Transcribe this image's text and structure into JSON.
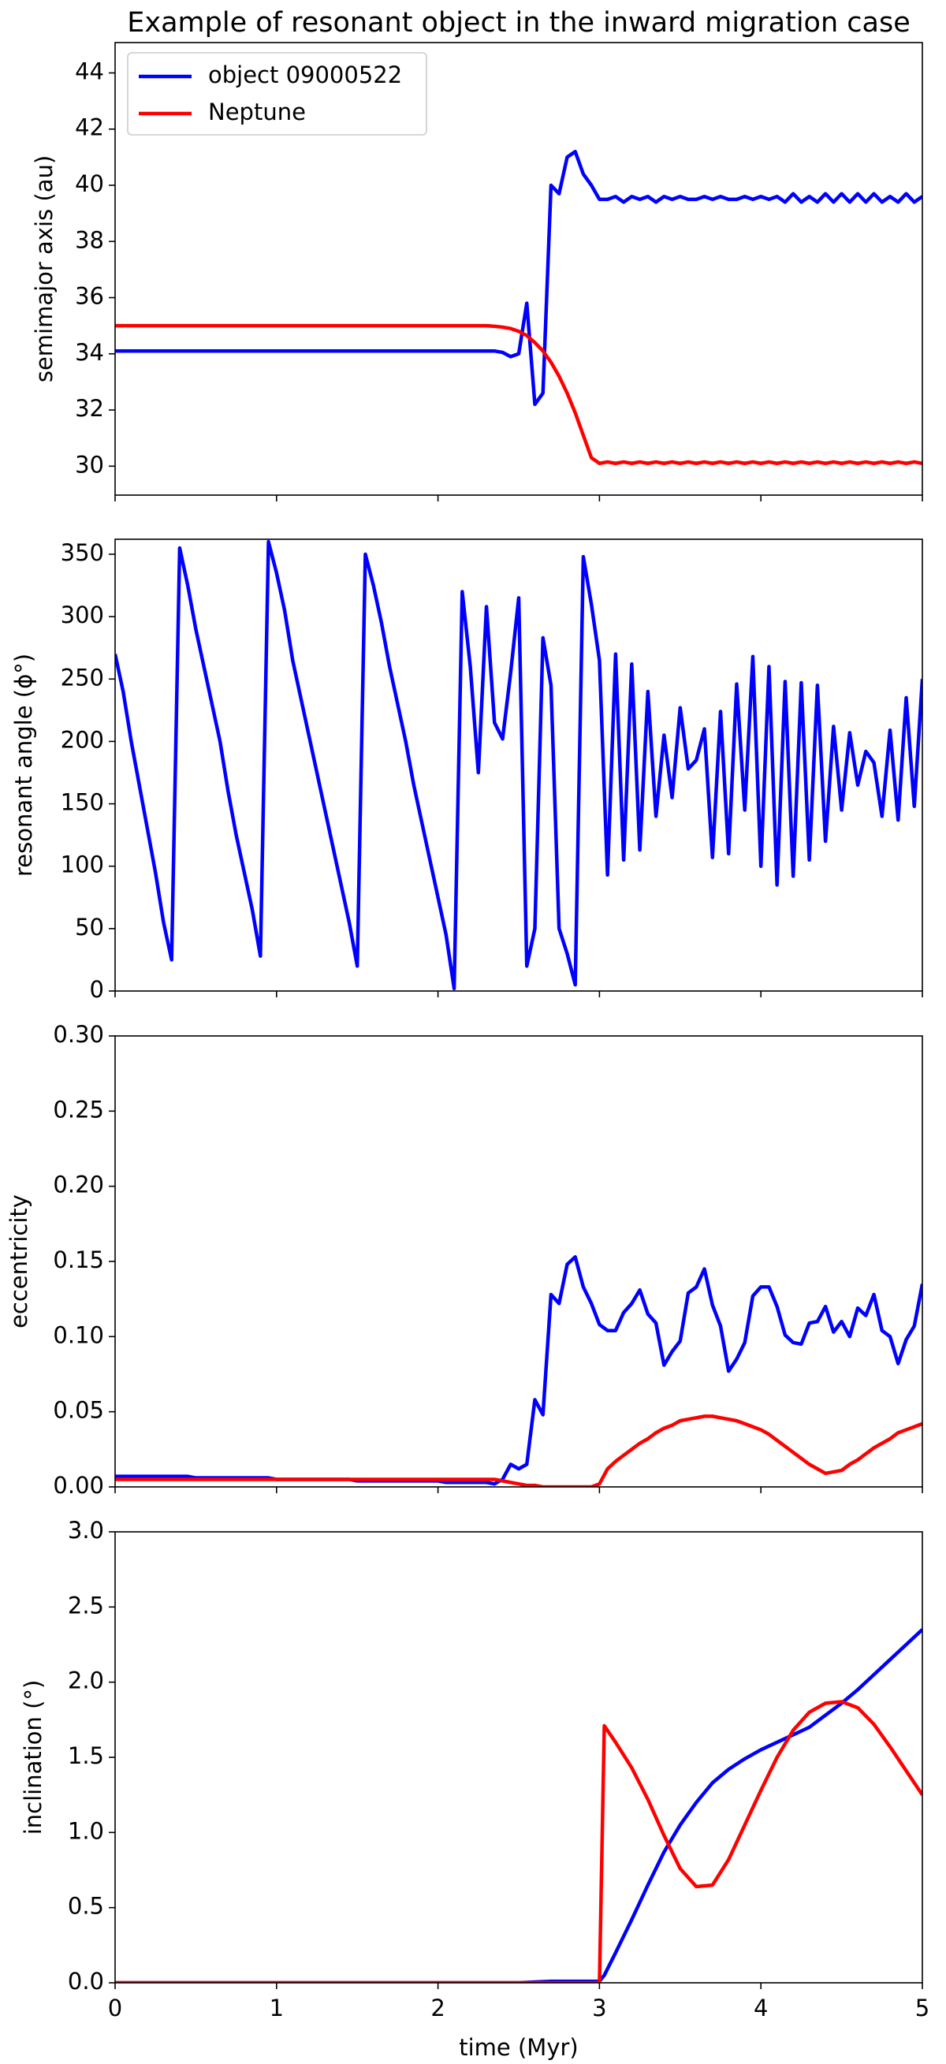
{
  "chart_data": [
    {
      "type": "line",
      "title": "Example of resonant object in the inward migration case",
      "ylabel": "semimajor axis (au)",
      "legend": "upper left",
      "xlim": [
        0,
        5
      ],
      "xticks": [
        0,
        1,
        2,
        3,
        4,
        5
      ],
      "ylim": [
        28.97,
        45.08
      ],
      "yticks": [
        30,
        32,
        34,
        36,
        38,
        40,
        42,
        44
      ],
      "x": [
        0,
        0.05,
        0.1,
        0.15,
        0.2,
        0.25,
        0.3,
        0.35,
        0.4,
        0.45,
        0.5,
        0.55,
        0.6,
        0.65,
        0.7,
        0.75,
        0.8,
        0.85,
        0.9,
        0.95,
        1,
        1.05,
        1.1,
        1.15,
        1.2,
        1.25,
        1.3,
        1.35,
        1.4,
        1.45,
        1.5,
        1.55,
        1.6,
        1.65,
        1.7,
        1.75,
        1.8,
        1.85,
        1.9,
        1.95,
        2,
        2.05,
        2.1,
        2.15,
        2.2,
        2.25,
        2.3,
        2.35,
        2.4,
        2.45,
        2.5,
        2.55,
        2.6,
        2.65,
        2.7,
        2.75,
        2.8,
        2.85,
        2.9,
        2.95,
        3,
        3.05,
        3.1,
        3.15,
        3.2,
        3.25,
        3.3,
        3.35,
        3.4,
        3.45,
        3.5,
        3.55,
        3.6,
        3.65,
        3.7,
        3.75,
        3.8,
        3.85,
        3.9,
        3.95,
        4,
        4.05,
        4.1,
        4.15,
        4.2,
        4.25,
        4.3,
        4.35,
        4.4,
        4.45,
        4.5,
        4.55,
        4.6,
        4.65,
        4.7,
        4.75,
        4.8,
        4.85,
        4.9,
        4.95,
        5
      ],
      "series": [
        {
          "name": "object 09000522",
          "color": "#0000ff",
          "values": [
            34.1,
            34.1,
            34.1,
            34.1,
            34.1,
            34.1,
            34.1,
            34.1,
            34.1,
            34.1,
            34.1,
            34.1,
            34.1,
            34.1,
            34.1,
            34.1,
            34.1,
            34.1,
            34.1,
            34.1,
            34.1,
            34.1,
            34.1,
            34.1,
            34.1,
            34.1,
            34.1,
            34.1,
            34.1,
            34.1,
            34.1,
            34.1,
            34.1,
            34.1,
            34.1,
            34.1,
            34.1,
            34.1,
            34.1,
            34.1,
            34.1,
            34.1,
            34.1,
            34.1,
            34.1,
            34.1,
            34.1,
            34.1,
            34.05,
            33.9,
            34.0,
            35.8,
            32.2,
            32.6,
            40.0,
            39.7,
            41.0,
            41.2,
            40.4,
            40.0,
            39.5,
            39.5,
            39.6,
            39.4,
            39.6,
            39.5,
            39.6,
            39.4,
            39.6,
            39.5,
            39.6,
            39.5,
            39.5,
            39.6,
            39.5,
            39.6,
            39.5,
            39.5,
            39.6,
            39.5,
            39.6,
            39.5,
            39.6,
            39.4,
            39.7,
            39.4,
            39.6,
            39.4,
            39.7,
            39.4,
            39.7,
            39.4,
            39.7,
            39.4,
            39.7,
            39.4,
            39.6,
            39.4,
            39.7,
            39.4,
            39.6
          ]
        },
        {
          "name": "Neptune",
          "color": "#ff0000",
          "values": [
            35,
            35,
            35,
            35,
            35,
            35,
            35,
            35,
            35,
            35,
            35,
            35,
            35,
            35,
            35,
            35,
            35,
            35,
            35,
            35,
            35,
            35,
            35,
            35,
            35,
            35,
            35,
            35,
            35,
            35,
            35,
            35,
            35,
            35,
            35,
            35,
            35,
            35,
            35,
            35,
            35,
            35,
            35,
            35,
            35,
            35,
            35,
            34.98,
            34.95,
            34.9,
            34.8,
            34.65,
            34.4,
            34.1,
            33.7,
            33.2,
            32.6,
            31.9,
            31.1,
            30.3,
            30.1,
            30.15,
            30.1,
            30.15,
            30.1,
            30.15,
            30.1,
            30.15,
            30.1,
            30.15,
            30.1,
            30.15,
            30.1,
            30.15,
            30.1,
            30.15,
            30.1,
            30.15,
            30.1,
            30.15,
            30.1,
            30.15,
            30.1,
            30.15,
            30.1,
            30.15,
            30.1,
            30.15,
            30.1,
            30.15,
            30.1,
            30.15,
            30.1,
            30.15,
            30.1,
            30.15,
            30.1,
            30.15,
            30.1,
            30.15,
            30.1
          ]
        }
      ]
    },
    {
      "type": "line",
      "ylabel": "resonant angle (ϕ°)",
      "xlim": [
        0,
        5
      ],
      "xticks": [
        0,
        1,
        2,
        3,
        4,
        5
      ],
      "ylim": [
        0,
        362
      ],
      "yticks": [
        0,
        50,
        100,
        150,
        200,
        250,
        300,
        350
      ],
      "x": [
        0,
        0.05,
        0.1,
        0.15,
        0.2,
        0.25,
        0.3,
        0.35,
        0.4,
        0.45,
        0.5,
        0.55,
        0.6,
        0.65,
        0.7,
        0.75,
        0.8,
        0.85,
        0.9,
        0.95,
        1,
        1.05,
        1.1,
        1.15,
        1.2,
        1.25,
        1.3,
        1.35,
        1.4,
        1.45,
        1.5,
        1.55,
        1.6,
        1.65,
        1.7,
        1.75,
        1.8,
        1.85,
        1.9,
        1.95,
        2,
        2.05,
        2.1,
        2.15,
        2.2,
        2.25,
        2.3,
        2.35,
        2.4,
        2.45,
        2.5,
        2.55,
        2.6,
        2.65,
        2.7,
        2.75,
        2.8,
        2.85,
        2.9,
        2.95,
        3,
        3.05,
        3.1,
        3.15,
        3.2,
        3.25,
        3.3,
        3.35,
        3.4,
        3.45,
        3.5,
        3.55,
        3.6,
        3.65,
        3.7,
        3.75,
        3.8,
        3.85,
        3.9,
        3.95,
        4,
        4.05,
        4.1,
        4.15,
        4.2,
        4.25,
        4.3,
        4.35,
        4.4,
        4.45,
        4.5,
        4.55,
        4.6,
        4.65,
        4.7,
        4.75,
        4.8,
        4.85,
        4.9,
        4.95,
        5
      ],
      "series": [
        {
          "color": "#0000ff",
          "values": [
            270,
            240,
            200,
            165,
            130,
            95,
            55,
            25,
            355,
            325,
            290,
            260,
            230,
            200,
            160,
            125,
            95,
            65,
            28,
            360,
            335,
            305,
            265,
            235,
            205,
            175,
            145,
            115,
            85,
            55,
            20,
            350,
            325,
            295,
            260,
            230,
            200,
            165,
            135,
            105,
            75,
            45,
            2,
            320,
            260,
            175,
            308,
            215,
            202,
            255,
            315,
            20,
            50,
            283,
            245,
            50,
            30,
            5,
            348,
            310,
            265,
            93,
            270,
            105,
            262,
            113,
            240,
            140,
            205,
            155,
            227,
            178,
            185,
            210,
            107,
            224,
            110,
            246,
            145,
            268,
            100,
            260,
            85,
            248,
            92,
            247,
            105,
            245,
            120,
            212,
            145,
            207,
            165,
            192,
            183,
            140,
            209,
            137,
            235,
            148,
            250
          ]
        }
      ]
    },
    {
      "type": "line",
      "ylabel": "eccentricity",
      "xlim": [
        0,
        5
      ],
      "xticks": [
        0,
        1,
        2,
        3,
        4,
        5
      ],
      "ylim": [
        0,
        0.3
      ],
      "yticks": [
        {
          "value": 0,
          "label": "0.00"
        },
        {
          "value": 0.05,
          "label": "0.05"
        },
        {
          "value": 0.1,
          "label": "0.10"
        },
        {
          "value": 0.15,
          "label": "0.15"
        },
        {
          "value": 0.2,
          "label": "0.20"
        },
        {
          "value": 0.25,
          "label": "0.25"
        },
        {
          "value": 0.3,
          "label": "0.30"
        }
      ],
      "x": [
        0,
        0.05,
        0.1,
        0.15,
        0.2,
        0.25,
        0.3,
        0.35,
        0.4,
        0.45,
        0.5,
        0.55,
        0.6,
        0.65,
        0.7,
        0.75,
        0.8,
        0.85,
        0.9,
        0.95,
        1,
        1.05,
        1.1,
        1.15,
        1.2,
        1.25,
        1.3,
        1.35,
        1.4,
        1.45,
        1.5,
        1.55,
        1.6,
        1.65,
        1.7,
        1.75,
        1.8,
        1.85,
        1.9,
        1.95,
        2,
        2.05,
        2.1,
        2.15,
        2.2,
        2.25,
        2.3,
        2.35,
        2.4,
        2.45,
        2.5,
        2.55,
        2.6,
        2.65,
        2.7,
        2.75,
        2.8,
        2.85,
        2.9,
        2.95,
        3,
        3.05,
        3.1,
        3.15,
        3.2,
        3.25,
        3.3,
        3.35,
        3.4,
        3.45,
        3.5,
        3.55,
        3.6,
        3.65,
        3.7,
        3.75,
        3.8,
        3.85,
        3.9,
        3.95,
        4,
        4.05,
        4.1,
        4.15,
        4.2,
        4.25,
        4.3,
        4.35,
        4.4,
        4.45,
        4.5,
        4.55,
        4.6,
        4.65,
        4.7,
        4.75,
        4.8,
        4.85,
        4.9,
        4.95,
        5
      ],
      "series": [
        {
          "color": "#0000ff",
          "values": [
            0.007,
            0.007,
            0.007,
            0.007,
            0.007,
            0.007,
            0.007,
            0.007,
            0.007,
            0.007,
            0.006,
            0.006,
            0.006,
            0.006,
            0.006,
            0.006,
            0.006,
            0.006,
            0.006,
            0.006,
            0.005,
            0.005,
            0.005,
            0.005,
            0.005,
            0.005,
            0.005,
            0.005,
            0.005,
            0.005,
            0.004,
            0.004,
            0.004,
            0.004,
            0.004,
            0.004,
            0.004,
            0.004,
            0.004,
            0.004,
            0.004,
            0.003,
            0.003,
            0.003,
            0.003,
            0.003,
            0.003,
            0.002,
            0.005,
            0.015,
            0.012,
            0.015,
            0.058,
            0.048,
            0.128,
            0.122,
            0.148,
            0.153,
            0.133,
            0.122,
            0.108,
            0.104,
            0.104,
            0.116,
            0.122,
            0.131,
            0.115,
            0.109,
            0.081,
            0.09,
            0.097,
            0.129,
            0.133,
            0.145,
            0.121,
            0.107,
            0.077,
            0.085,
            0.096,
            0.127,
            0.133,
            0.133,
            0.12,
            0.101,
            0.096,
            0.095,
            0.109,
            0.11,
            0.12,
            0.103,
            0.11,
            0.1,
            0.119,
            0.114,
            0.128,
            0.104,
            0.1,
            0.082,
            0.098,
            0.107,
            0.135
          ]
        },
        {
          "color": "#ff0000",
          "values": [
            0.005,
            0.005,
            0.005,
            0.005,
            0.005,
            0.005,
            0.005,
            0.005,
            0.005,
            0.005,
            0.005,
            0.005,
            0.005,
            0.005,
            0.005,
            0.005,
            0.005,
            0.005,
            0.005,
            0.005,
            0.005,
            0.005,
            0.005,
            0.005,
            0.005,
            0.005,
            0.005,
            0.005,
            0.005,
            0.005,
            0.005,
            0.005,
            0.005,
            0.005,
            0.005,
            0.005,
            0.005,
            0.005,
            0.005,
            0.005,
            0.005,
            0.005,
            0.005,
            0.005,
            0.005,
            0.005,
            0.005,
            0.005,
            0.004,
            0.003,
            0.002,
            0.001,
            0.001,
            0,
            0,
            0,
            0,
            0,
            0,
            0,
            0.002,
            0.012,
            0.017,
            0.021,
            0.025,
            0.029,
            0.032,
            0.036,
            0.039,
            0.041,
            0.044,
            0.045,
            0.046,
            0.047,
            0.047,
            0.046,
            0.045,
            0.044,
            0.042,
            0.04,
            0.038,
            0.035,
            0.031,
            0.027,
            0.023,
            0.019,
            0.015,
            0.012,
            0.009,
            0.01,
            0.011,
            0.015,
            0.018,
            0.022,
            0.026,
            0.029,
            0.032,
            0.036,
            0.038,
            0.04,
            0.042
          ]
        }
      ]
    },
    {
      "type": "line",
      "ylabel": "inclination (°)",
      "xlabel": "time (Myr)",
      "xlim": [
        0,
        5
      ],
      "xticks": [
        0,
        1,
        2,
        3,
        4,
        5
      ],
      "ylim": [
        0,
        3
      ],
      "yticks": [
        {
          "value": 0,
          "label": "0.0"
        },
        {
          "value": 0.5,
          "label": "0.5"
        },
        {
          "value": 1,
          "label": "1.0"
        },
        {
          "value": 1.5,
          "label": "1.5"
        },
        {
          "value": 2,
          "label": "2.0"
        },
        {
          "value": 2.5,
          "label": "2.5"
        },
        {
          "value": 3,
          "label": "3.0"
        }
      ],
      "x": [
        0,
        0.1,
        0.2,
        0.3,
        0.4,
        0.5,
        0.6,
        0.7,
        0.8,
        0.9,
        1,
        1.1,
        1.2,
        1.3,
        1.4,
        1.5,
        1.6,
        1.7,
        1.8,
        1.9,
        2,
        2.1,
        2.2,
        2.3,
        2.4,
        2.5,
        2.6,
        2.7,
        2.8,
        2.9,
        3,
        3.03,
        3.1,
        3.2,
        3.3,
        3.4,
        3.5,
        3.6,
        3.7,
        3.8,
        3.9,
        4,
        4.1,
        4.2,
        4.3,
        4.4,
        4.5,
        4.6,
        4.7,
        4.8,
        4.9,
        5
      ],
      "series": [
        {
          "color": "#0000ff",
          "values": [
            0,
            0,
            0,
            0,
            0,
            0,
            0,
            0,
            0,
            0,
            0,
            0,
            0,
            0,
            0,
            0,
            0,
            0,
            0,
            0,
            0,
            0,
            0,
            0,
            0,
            0,
            0.005,
            0.01,
            0.01,
            0.01,
            0.01,
            0.05,
            0.2,
            0.42,
            0.65,
            0.87,
            1.05,
            1.2,
            1.33,
            1.42,
            1.49,
            1.55,
            1.6,
            1.65,
            1.7,
            1.78,
            1.86,
            1.95,
            2.05,
            2.15,
            2.25,
            2.35
          ]
        },
        {
          "color": "#ff0000",
          "values": [
            0,
            0,
            0,
            0,
            0,
            0,
            0,
            0,
            0,
            0,
            0,
            0,
            0,
            0,
            0,
            0,
            0,
            0,
            0,
            0,
            0,
            0,
            0,
            0,
            0,
            0,
            0,
            0,
            0,
            0,
            0,
            1.71,
            1.6,
            1.43,
            1.22,
            0.98,
            0.76,
            0.64,
            0.65,
            0.82,
            1.05,
            1.28,
            1.5,
            1.68,
            1.8,
            1.86,
            1.87,
            1.83,
            1.72,
            1.57,
            1.41,
            1.25
          ]
        }
      ]
    }
  ]
}
